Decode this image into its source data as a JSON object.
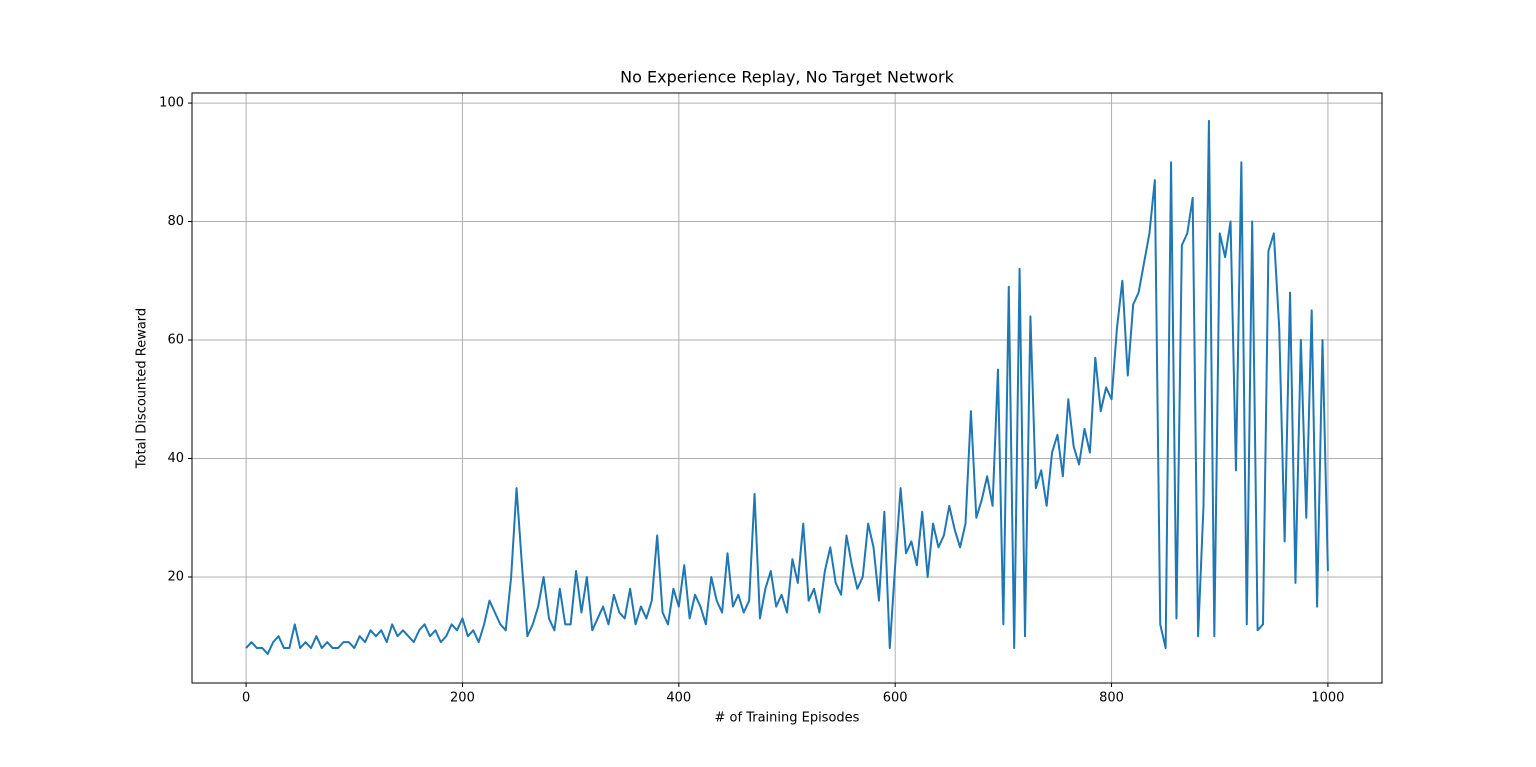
{
  "chart_data": {
    "type": "line",
    "title": "No Experience Replay, No Target Network",
    "xlabel": "# of Training Episodes",
    "ylabel": "Total Discounted Reward",
    "xlim": [
      -50,
      1050
    ],
    "ylim": [
      2.1,
      101.7
    ],
    "xticks": [
      0,
      200,
      400,
      600,
      800,
      1000
    ],
    "yticks": [
      20,
      40,
      60,
      80,
      100
    ],
    "grid": true,
    "x": [
      0,
      5,
      10,
      15,
      20,
      25,
      30,
      35,
      40,
      45,
      50,
      55,
      60,
      65,
      70,
      75,
      80,
      85,
      90,
      95,
      100,
      105,
      110,
      115,
      120,
      125,
      130,
      135,
      140,
      145,
      150,
      155,
      160,
      165,
      170,
      175,
      180,
      185,
      190,
      195,
      200,
      205,
      210,
      215,
      220,
      225,
      230,
      235,
      240,
      245,
      250,
      255,
      260,
      265,
      270,
      275,
      280,
      285,
      290,
      295,
      300,
      305,
      310,
      315,
      320,
      325,
      330,
      335,
      340,
      345,
      350,
      355,
      360,
      365,
      370,
      375,
      380,
      385,
      390,
      395,
      400,
      405,
      410,
      415,
      420,
      425,
      430,
      435,
      440,
      445,
      450,
      455,
      460,
      465,
      470,
      475,
      480,
      485,
      490,
      495,
      500,
      505,
      510,
      515,
      520,
      525,
      530,
      535,
      540,
      545,
      550,
      555,
      560,
      565,
      570,
      575,
      580,
      585,
      590,
      595,
      600,
      605,
      610,
      615,
      620,
      625,
      630,
      635,
      640,
      645,
      650,
      655,
      660,
      665,
      670,
      675,
      680,
      685,
      690,
      695,
      700,
      705,
      710,
      715,
      720,
      725,
      730,
      735,
      740,
      745,
      750,
      755,
      760,
      765,
      770,
      775,
      780,
      785,
      790,
      795,
      800,
      805,
      810,
      815,
      820,
      825,
      830,
      835,
      840,
      845,
      850,
      855,
      860,
      865,
      870,
      875,
      880,
      885,
      890,
      895,
      900,
      905,
      910,
      915,
      920,
      925,
      930,
      935,
      940,
      945,
      950,
      955,
      960,
      965,
      970,
      975,
      980,
      985,
      990,
      995,
      1000
    ],
    "series": [
      {
        "name": "reward",
        "color": "#1f77b4",
        "values": [
          8,
          9,
          8,
          8,
          7,
          9,
          10,
          8,
          8,
          12,
          8,
          9,
          8,
          10,
          8,
          9,
          8,
          8,
          9,
          9,
          8,
          10,
          9,
          11,
          10,
          11,
          9,
          12,
          10,
          11,
          10,
          9,
          11,
          12,
          10,
          11,
          9,
          10,
          12,
          11,
          13,
          10,
          11,
          9,
          12,
          16,
          14,
          12,
          11,
          20,
          35,
          22,
          10,
          12,
          15,
          20,
          13,
          11,
          18,
          12,
          12,
          21,
          14,
          20,
          11,
          13,
          15,
          12,
          17,
          14,
          13,
          18,
          12,
          15,
          13,
          16,
          27,
          14,
          12,
          18,
          15,
          22,
          13,
          17,
          15,
          12,
          20,
          16,
          14,
          24,
          15,
          17,
          14,
          16,
          34,
          13,
          18,
          21,
          15,
          17,
          14,
          23,
          19,
          29,
          16,
          18,
          14,
          21,
          25,
          19,
          17,
          27,
          22,
          18,
          20,
          29,
          25,
          16,
          31,
          8,
          22,
          35,
          24,
          26,
          22,
          31,
          20,
          29,
          25,
          27,
          32,
          28,
          25,
          29,
          48,
          30,
          33,
          37,
          32,
          55,
          12,
          69,
          8,
          72,
          10,
          64,
          35,
          38,
          32,
          41,
          44,
          37,
          50,
          42,
          39,
          45,
          41,
          57,
          48,
          52,
          50,
          62,
          70,
          54,
          66,
          68,
          73,
          78,
          87,
          12,
          8,
          90,
          13,
          76,
          78,
          84,
          10,
          32,
          97,
          10,
          78,
          74,
          80,
          38,
          90,
          12,
          80,
          11,
          12,
          75,
          78,
          62,
          26,
          68,
          19,
          60,
          30,
          65,
          15,
          60,
          21
        ]
      }
    ]
  }
}
